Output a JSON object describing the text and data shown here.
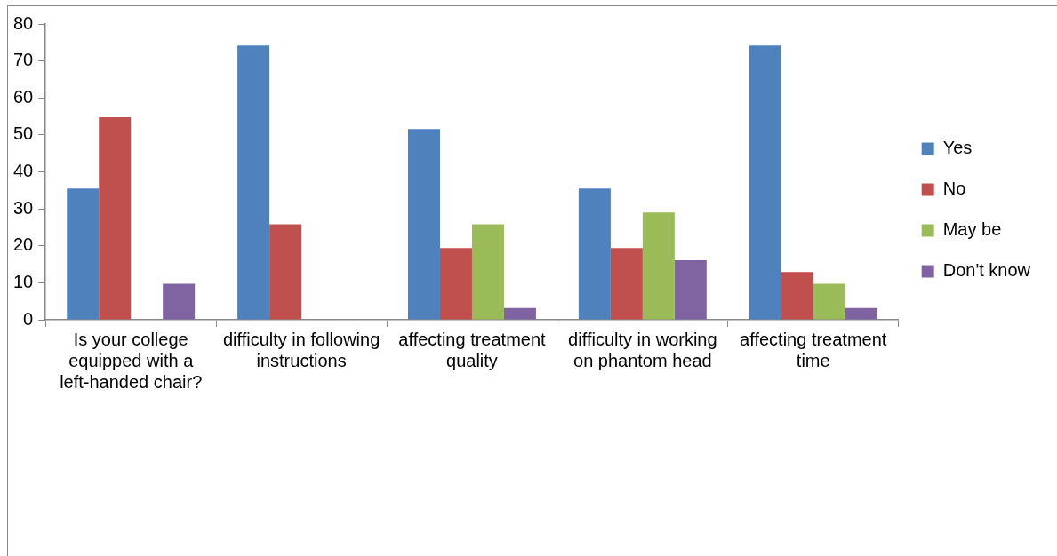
{
  "chart_data": {
    "type": "bar",
    "categories": [
      "Is your college equipped with a left-handed chair?",
      "difficulty in following instructions",
      "affecting treatment quality",
      "difficulty in working on phantom head",
      "affecting treatment time"
    ],
    "series": [
      {
        "name": "Yes",
        "color": "#4f81bd",
        "values": [
          35.5,
          74.2,
          51.6,
          35.5,
          74.2
        ]
      },
      {
        "name": "No",
        "color": "#c0504d",
        "values": [
          54.8,
          25.8,
          19.4,
          19.4,
          12.9
        ]
      },
      {
        "name": "May be",
        "color": "#9bbb59",
        "values": [
          0,
          0,
          25.8,
          29.0,
          9.7
        ]
      },
      {
        "name": "Don't know",
        "color": "#8064a2",
        "values": [
          9.7,
          0,
          3.2,
          16.1,
          3.2
        ]
      }
    ],
    "ylim": [
      0,
      80
    ],
    "yticks": [
      0,
      10,
      20,
      30,
      40,
      50,
      60,
      70,
      80
    ],
    "grid": false,
    "legend": "right"
  }
}
